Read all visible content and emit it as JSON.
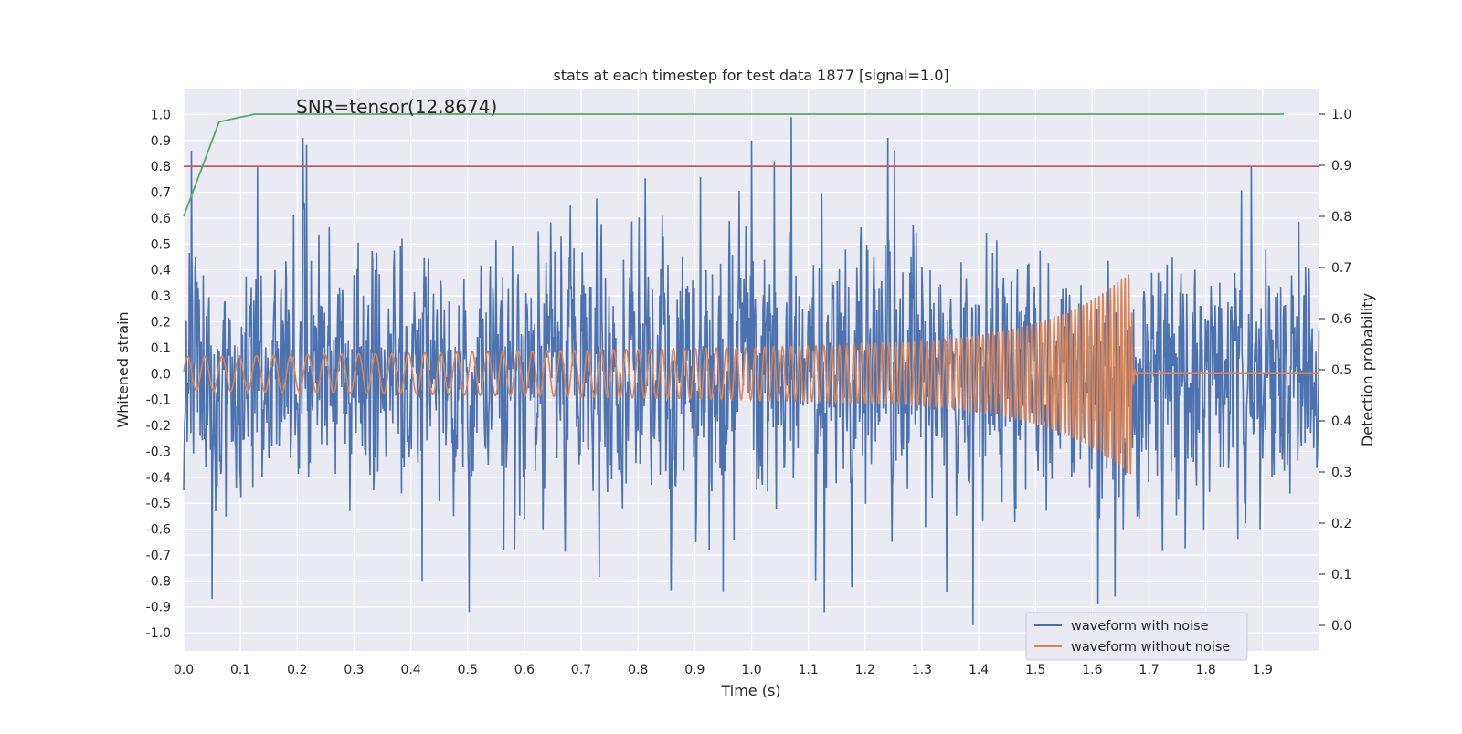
{
  "chart_data": {
    "type": "line",
    "title": "stats at each timestep for test data 1877 [signal=1.0]",
    "xlabel": "Time (s)",
    "ylabel": "Whitened strain",
    "y2label": "Detection probability",
    "xlim": [
      0.0,
      2.0
    ],
    "ylim": [
      -1.07,
      1.1
    ],
    "y2lim": [
      -0.05,
      1.05
    ],
    "xticks": [
      "0.0",
      "0.1",
      "0.2",
      "0.3",
      "0.4",
      "0.5",
      "0.6",
      "0.7",
      "0.8",
      "0.9",
      "1.0",
      "1.1",
      "1.2",
      "1.3",
      "1.4",
      "1.5",
      "1.6",
      "1.7",
      "1.8",
      "1.9"
    ],
    "yticks": [
      "1.0",
      "0.9",
      "0.8",
      "0.7",
      "0.6",
      "0.5",
      "0.4",
      "0.3",
      "0.2",
      "0.1",
      "0.0",
      "-0.1",
      "-0.2",
      "-0.3",
      "-0.4",
      "-0.5",
      "-0.6",
      "-0.7",
      "-0.8",
      "-0.9",
      "-1.0"
    ],
    "y2ticks": [
      "1.0",
      "0.9",
      "0.8",
      "0.7",
      "0.6",
      "0.5",
      "0.4",
      "0.3",
      "0.2",
      "0.1",
      "0.0"
    ],
    "annotation": "SNR=tensor(12.8674)",
    "threshold": {
      "value": 0.8,
      "color": "#c44e52"
    },
    "series": [
      {
        "name": "waveform with noise",
        "color": "#4c72b0",
        "axis": "left",
        "kind": "noise",
        "amplitude_range": [
          -0.97,
          0.99
        ],
        "peaks": [
          [
            0.0,
            -0.45
          ],
          [
            0.05,
            -0.87
          ],
          [
            1.0,
            0.9
          ],
          [
            1.04,
            0.82
          ],
          [
            1.07,
            0.99
          ],
          [
            1.39,
            -0.97
          ],
          [
            1.61,
            -0.89
          ],
          [
            1.88,
            0.8
          ],
          [
            0.42,
            -0.8
          ],
          [
            0.95,
            -0.84
          ],
          [
            1.64,
            -0.86
          ]
        ]
      },
      {
        "name": "waveform without noise",
        "color": "#dd8452",
        "axis": "left",
        "kind": "chirp",
        "merger_time": 1.67,
        "start_amplitude": 0.065,
        "peak_amplitude": 0.4,
        "start_frequency": 33,
        "end_frequency": 160
      },
      {
        "name": "detection probability",
        "color": "#55a868",
        "axis": "right",
        "x": [
          0.0,
          0.0625,
          0.125,
          1.9375
        ],
        "y": [
          0.8,
          0.985,
          1.0,
          1.0
        ]
      }
    ],
    "legend": {
      "position": "lower-right",
      "entries": [
        "waveform with noise",
        "waveform without noise"
      ]
    }
  }
}
